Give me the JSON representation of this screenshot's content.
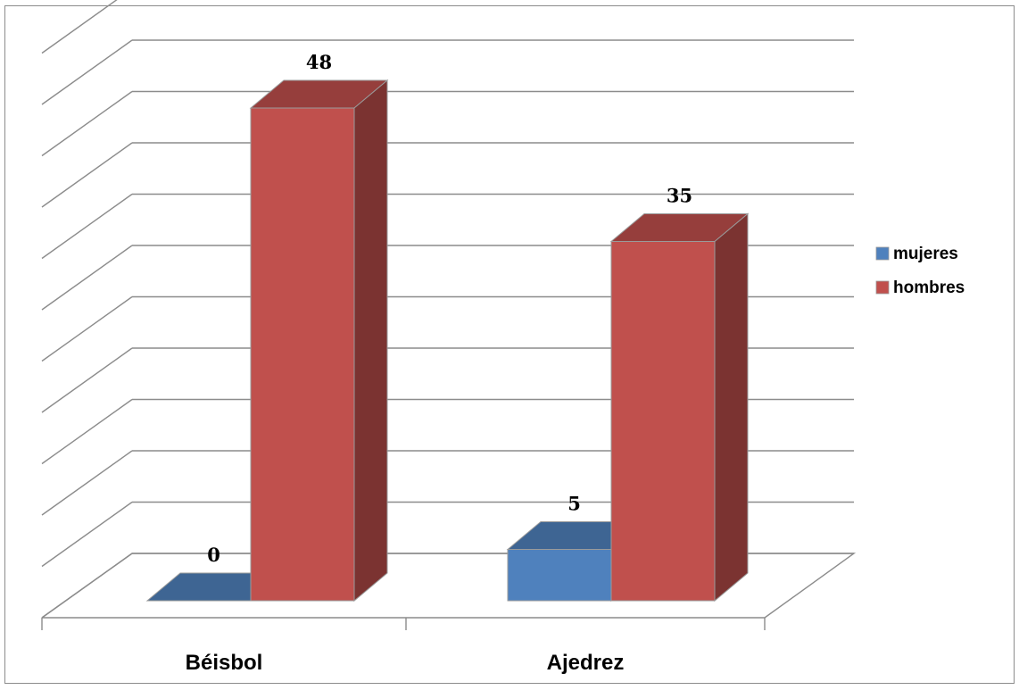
{
  "chart_data": {
    "type": "bar",
    "style": "3d-clustered-column",
    "categories": [
      "Béisbol",
      "Ajedrez"
    ],
    "series": [
      {
        "name": "mujeres",
        "values": [
          0,
          5
        ],
        "color": "#4f81bd"
      },
      {
        "name": "hombres",
        "values": [
          48,
          35
        ],
        "color": "#c0504d"
      }
    ],
    "ylim": [
      0,
      55
    ],
    "grid": true,
    "y_tick_labels_visible": false,
    "legend_position": "right"
  }
}
